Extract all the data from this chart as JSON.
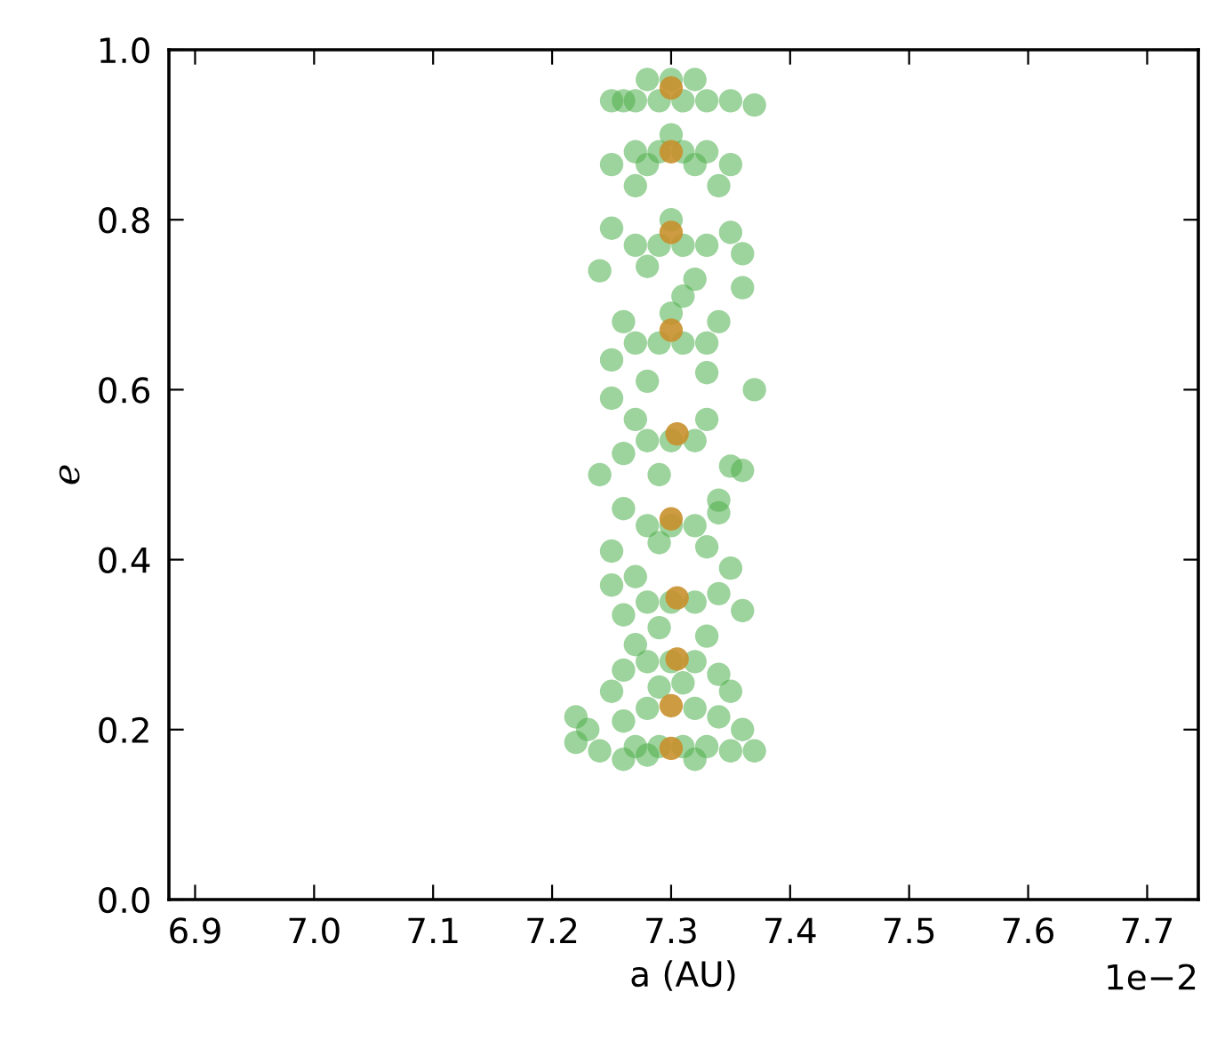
{
  "chart_data": {
    "type": "scatter",
    "xlabel": "a (AU)",
    "ylabel": "e",
    "xlim": [
      6.878,
      7.743
    ],
    "ylim": [
      0.0,
      1.0
    ],
    "xticks": [
      6.9,
      {
        "value": 7.0,
        "label": "7.0"
      },
      7.1,
      7.2,
      7.3,
      7.4,
      7.5,
      7.6,
      7.7
    ],
    "yticks": [
      {
        "value": 0.0,
        "label": "0.0"
      },
      0.2,
      0.4,
      0.6,
      0.8,
      {
        "value": 1.0,
        "label": "1.0"
      }
    ],
    "annotations": [
      "1e−2"
    ],
    "grid": false,
    "marker": "circle",
    "series": [
      {
        "color": "#4daf4a",
        "x": [
          7.25,
          7.27,
          7.29,
          7.31,
          7.33,
          7.35,
          7.37,
          7.28,
          7.3,
          7.32,
          7.26,
          7.27,
          7.29,
          7.31,
          7.33,
          7.25,
          7.28,
          7.32,
          7.35,
          7.3,
          7.34,
          7.27,
          7.27,
          7.29,
          7.31,
          7.33,
          7.3,
          7.25,
          7.35,
          7.28,
          7.32,
          7.24,
          7.36,
          7.31,
          7.27,
          7.29,
          7.31,
          7.33,
          7.3,
          7.26,
          7.34,
          7.25,
          7.36,
          7.37,
          7.28,
          7.33,
          7.28,
          7.3,
          7.32,
          7.27,
          7.33,
          7.25,
          7.35,
          7.26,
          7.24,
          7.36,
          7.29,
          7.34,
          7.28,
          7.3,
          7.32,
          7.26,
          7.34,
          7.25,
          7.33,
          7.29,
          7.27,
          7.35,
          7.28,
          7.3,
          7.32,
          7.26,
          7.34,
          7.25,
          7.36,
          7.29,
          7.33,
          7.27,
          7.28,
          7.3,
          7.32,
          7.26,
          7.34,
          7.25,
          7.35,
          7.29,
          7.31,
          7.28,
          7.3,
          7.32,
          7.26,
          7.34,
          7.23,
          7.36,
          7.22,
          7.24,
          7.27,
          7.29,
          7.31,
          7.33,
          7.26,
          7.35,
          7.37,
          7.28,
          7.32,
          7.22
        ],
        "values": [
          0.94,
          0.94,
          0.94,
          0.94,
          0.94,
          0.94,
          0.935,
          0.965,
          0.965,
          0.965,
          0.94,
          0.88,
          0.88,
          0.88,
          0.88,
          0.865,
          0.865,
          0.865,
          0.865,
          0.9,
          0.84,
          0.84,
          0.77,
          0.77,
          0.77,
          0.77,
          0.8,
          0.79,
          0.785,
          0.745,
          0.73,
          0.74,
          0.76,
          0.71,
          0.655,
          0.655,
          0.655,
          0.655,
          0.69,
          0.68,
          0.68,
          0.635,
          0.72,
          0.6,
          0.61,
          0.62,
          0.54,
          0.54,
          0.54,
          0.565,
          0.565,
          0.59,
          0.51,
          0.525,
          0.5,
          0.505,
          0.5,
          0.47,
          0.44,
          0.44,
          0.44,
          0.46,
          0.455,
          0.41,
          0.415,
          0.42,
          0.38,
          0.39,
          0.35,
          0.35,
          0.35,
          0.335,
          0.36,
          0.37,
          0.34,
          0.32,
          0.31,
          0.3,
          0.28,
          0.28,
          0.28,
          0.27,
          0.265,
          0.245,
          0.245,
          0.25,
          0.255,
          0.225,
          null,
          0.225,
          0.21,
          0.215,
          0.2,
          0.2,
          0.185,
          0.175,
          0.18,
          0.18,
          0.18,
          0.18,
          0.165,
          0.175,
          0.175,
          0.17,
          0.165,
          0.215
        ]
      },
      {
        "color": "#c8902c",
        "x": [
          7.3,
          7.3,
          7.3,
          7.3,
          7.305,
          7.3,
          7.305,
          7.305,
          7.3,
          7.3
        ],
        "values": [
          0.955,
          0.88,
          0.785,
          0.67,
          0.548,
          0.448,
          0.355,
          0.283,
          0.228,
          0.178
        ]
      }
    ]
  }
}
